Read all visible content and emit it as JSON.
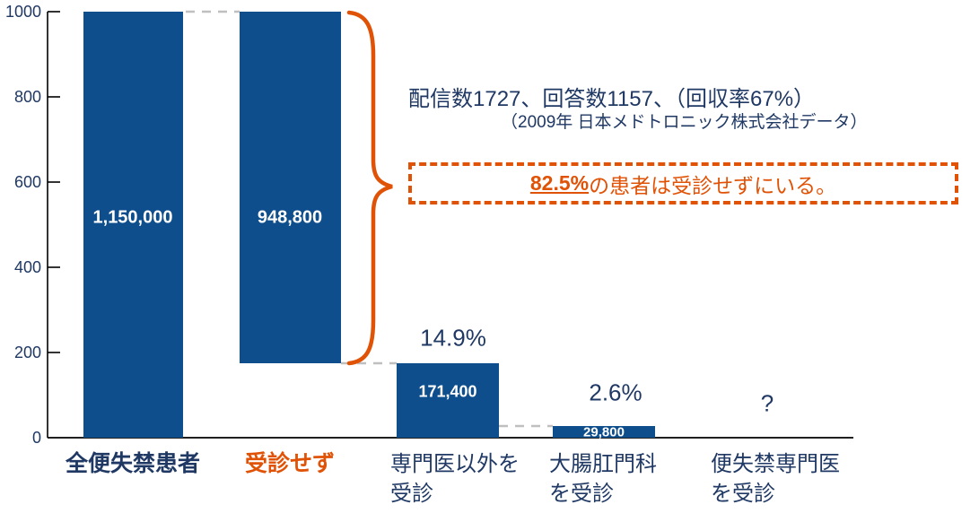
{
  "chart_data": {
    "type": "bar",
    "title": "",
    "y_axis": {
      "ticks": [
        "1000",
        "800",
        "600",
        "400",
        "200",
        "0"
      ],
      "range": [
        0,
        1000
      ],
      "grid": false
    },
    "legend": null,
    "bars": [
      {
        "label": "全便失禁患者",
        "label_display": "全便失禁患者",
        "value": 1150000,
        "display_value": "1,150,000",
        "percent": null,
        "emphasis": "bold-navy"
      },
      {
        "label": "受診せず",
        "label_display": "受診せず",
        "value": 948800,
        "display_value": "948,800",
        "percent": null,
        "emphasis": "bold-orange",
        "floating": true
      },
      {
        "label": "専門医以外を受診",
        "label_display": "専門医以外を\n受診",
        "value": 171400,
        "display_value": "171,400",
        "percent": "14.9%",
        "emphasis": "normal"
      },
      {
        "label": "大腸肛門科を受診",
        "label_display": "大腸肛門科\nを受診",
        "value": 29800,
        "display_value": "29,800",
        "percent": "2.6%",
        "emphasis": "normal"
      },
      {
        "label": "便失禁専門医を受診",
        "label_display": "便失禁専門医\nを受診",
        "value": null,
        "display_value": null,
        "percent": "?",
        "emphasis": "normal"
      }
    ],
    "annotations": {
      "survey_line1": "配信数1727、回答数1157、（回収率67%）",
      "survey_line2": "（2009年 日本メドトロニック株式会社データ）",
      "highlight_percent": "82.5%",
      "highlight_text": "の患者は受診せずにいる。"
    },
    "colors": {
      "bar": "#0E4E8C",
      "accent_orange": "#E05206",
      "text_navy": "#1F3864",
      "connector_gray": "#BFBFBF",
      "value_label": "#FFFFFF",
      "axis": "#000000"
    }
  }
}
